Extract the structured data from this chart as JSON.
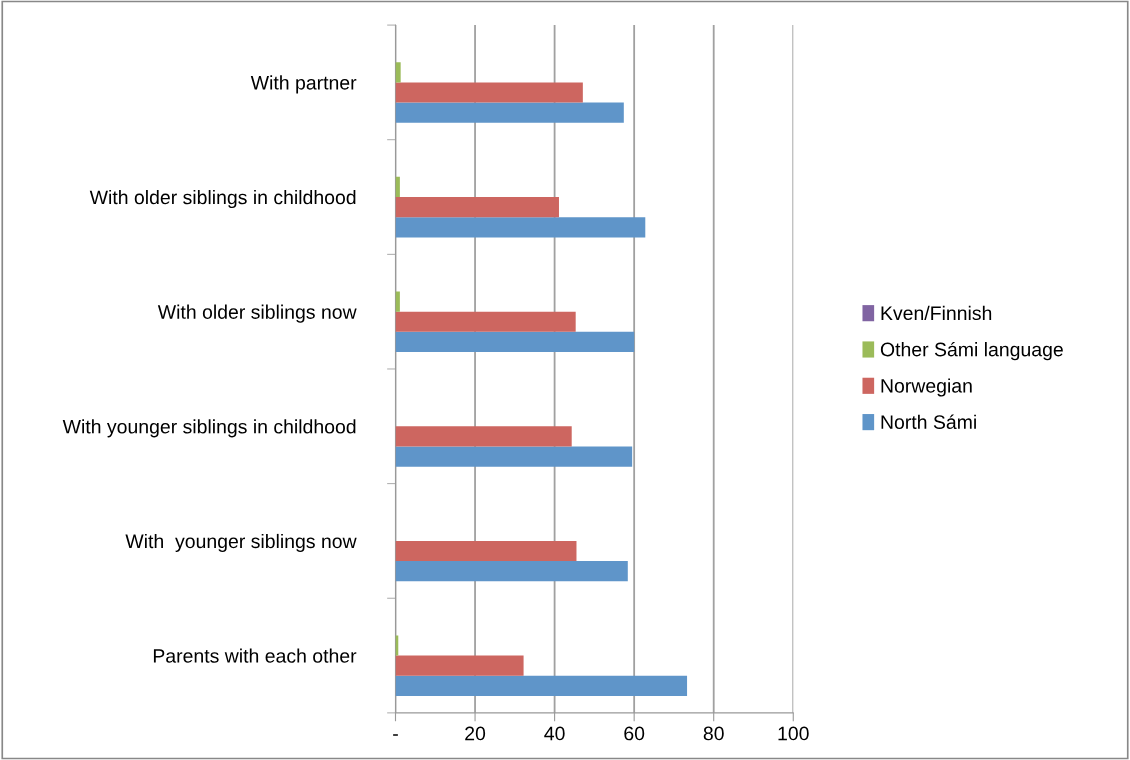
{
  "chart_data": {
    "type": "bar",
    "orientation": "horizontal",
    "categories": [
      "With partner",
      "With older siblings in childhood",
      "With older siblings now",
      "With younger siblings in childhood",
      "With  younger siblings now",
      "Parents with each other"
    ],
    "series": [
      {
        "name": "North Sámi",
        "color": "#5f95c9",
        "values": [
          57.4,
          62.8,
          60.0,
          59.5,
          58.4,
          73.3
        ]
      },
      {
        "name": "Norwegian",
        "color": "#cd6660",
        "values": [
          47.1,
          41.1,
          45.3,
          44.3,
          45.5,
          32.2
        ]
      },
      {
        "name": "Other Sámi language",
        "color": "#9bbb59",
        "values": [
          1.3,
          1.1,
          1.1,
          null,
          null,
          0.7
        ]
      },
      {
        "name": "Kven/Finnish",
        "color": "#8064a2",
        "values": [
          null,
          null,
          null,
          null,
          null,
          null
        ]
      }
    ],
    "xlim": [
      0,
      100
    ],
    "xticks": [
      {
        "value": 0,
        "label": "-"
      },
      20,
      40,
      60,
      80,
      100
    ],
    "grid": "x",
    "legend": "right"
  }
}
